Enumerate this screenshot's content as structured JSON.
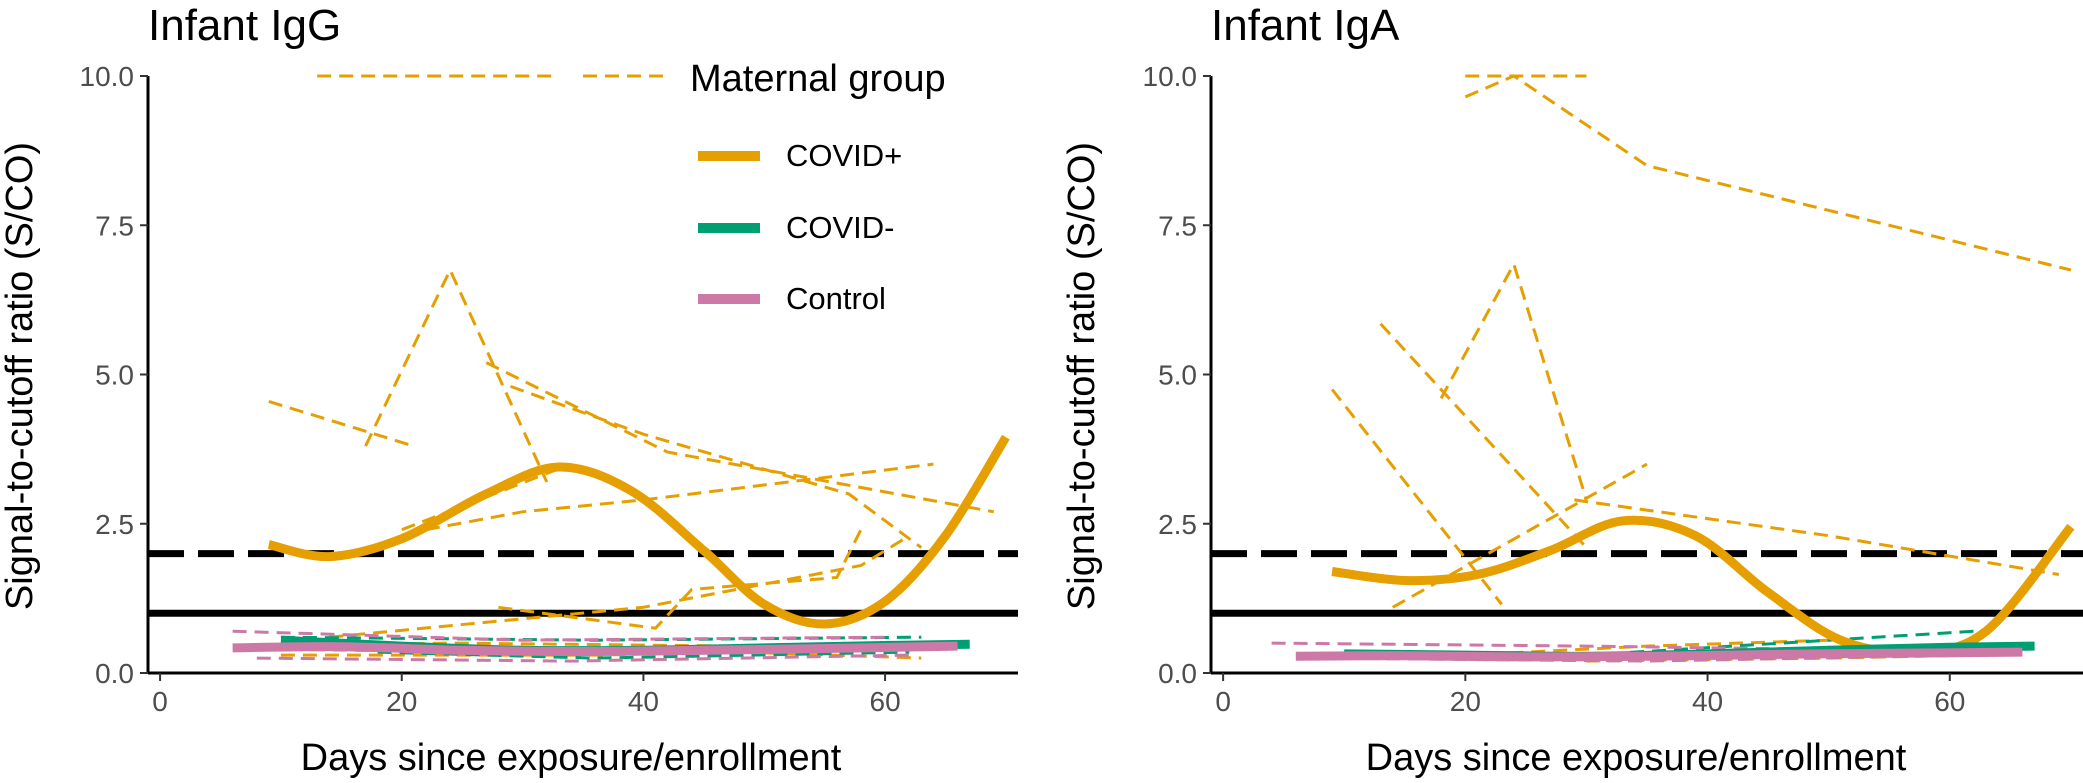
{
  "colors": {
    "covid_pos": "#E69F00",
    "covid_neg": "#009E73",
    "control": "#CC79A7",
    "axis": "#000000",
    "tick_text": "#4d4d4d"
  },
  "legend": {
    "title": "Maternal group",
    "items": [
      {
        "label": "COVID+",
        "color": "#E69F00"
      },
      {
        "label": "COVID-",
        "color": "#009E73"
      },
      {
        "label": "Control",
        "color": "#CC79A7"
      }
    ]
  },
  "chart_data": [
    {
      "type": "line",
      "title": "Infant IgG",
      "xlabel": "Days since exposure/enrollment",
      "ylabel": "Signal-to-cutoff ratio (S/CO)",
      "xlim": [
        -1,
        71
      ],
      "ylim": [
        0,
        10
      ],
      "xticks": [
        "0",
        "20",
        "40",
        "60"
      ],
      "yticks": [
        "0.0",
        "2.5",
        "5.0",
        "7.5",
        "10.0"
      ],
      "reference_lines": [
        {
          "y": 2,
          "style": "dashed"
        },
        {
          "y": 1,
          "style": "solid"
        }
      ],
      "individual_series": [
        {
          "group": "COVID+",
          "x": [
            9,
            21
          ],
          "y": [
            4.55,
            3.8
          ]
        },
        {
          "group": "COVID+",
          "x": [
            17,
            24,
            32
          ],
          "y": [
            3.8,
            6.75,
            3.2
          ]
        },
        {
          "group": "COVID+",
          "x": [
            27,
            42,
            69
          ],
          "y": [
            5.2,
            3.7,
            2.7
          ]
        },
        {
          "group": "COVID+",
          "x": [
            29,
            40,
            57,
            63
          ],
          "y": [
            4.8,
            4.0,
            3.0,
            2.1
          ]
        },
        {
          "group": "COVID+",
          "x": [
            20,
            34
          ],
          "y": [
            2.4,
            3.5
          ]
        },
        {
          "group": "COVID+",
          "x": [
            22,
            30,
            40,
            64
          ],
          "y": [
            2.4,
            2.7,
            2.9,
            3.5
          ]
        },
        {
          "group": "COVID+",
          "x": [
            14,
            40,
            58,
            62
          ],
          "y": [
            0.6,
            1.1,
            1.8,
            2.3
          ]
        },
        {
          "group": "COVID+",
          "x": [
            28,
            41,
            44,
            56,
            58
          ],
          "y": [
            1.1,
            0.75,
            1.4,
            1.6,
            2.4
          ]
        },
        {
          "group": "COVID+",
          "x": [
            8,
            24,
            48,
            62
          ],
          "y": [
            0.45,
            0.5,
            0.45,
            0.5
          ]
        },
        {
          "group": "COVID+",
          "x": [
            10,
            36,
            48,
            63
          ],
          "y": [
            0.3,
            0.3,
            0.35,
            0.25
          ]
        },
        {
          "group": "COVID+",
          "x": [
            13,
            33
          ],
          "y": [
            10.0,
            10.0
          ]
        },
        {
          "group": "COVID+",
          "x": [
            35,
            42
          ],
          "y": [
            10.0,
            10.0
          ]
        },
        {
          "group": "COVID-",
          "x": [
            10,
            36,
            63
          ],
          "y": [
            0.6,
            0.55,
            0.6
          ]
        },
        {
          "group": "COVID-",
          "x": [
            14,
            40,
            60
          ],
          "y": [
            0.45,
            0.35,
            0.5
          ]
        },
        {
          "group": "COVID-",
          "x": [
            18,
            36,
            62
          ],
          "y": [
            0.35,
            0.25,
            0.35
          ]
        },
        {
          "group": "Control",
          "x": [
            6,
            30,
            60
          ],
          "y": [
            0.7,
            0.55,
            0.6
          ]
        },
        {
          "group": "Control",
          "x": [
            7,
            31,
            66
          ],
          "y": [
            0.4,
            0.35,
            0.45
          ]
        },
        {
          "group": "Control",
          "x": [
            8,
            34,
            62
          ],
          "y": [
            0.25,
            0.2,
            0.3
          ]
        }
      ],
      "smooth_series": [
        {
          "group": "COVID+",
          "x": [
            9,
            14,
            20,
            27,
            33,
            39,
            45,
            50,
            55,
            60,
            65,
            70
          ],
          "y": [
            2.15,
            1.95,
            2.25,
            3.0,
            3.45,
            3.05,
            2.05,
            1.15,
            0.82,
            1.2,
            2.3,
            3.95
          ]
        },
        {
          "group": "COVID-",
          "x": [
            10,
            20,
            30,
            40,
            50,
            60,
            67
          ],
          "y": [
            0.55,
            0.45,
            0.38,
            0.38,
            0.42,
            0.46,
            0.48
          ]
        },
        {
          "group": "Control",
          "x": [
            6,
            15,
            25,
            35,
            45,
            55,
            66
          ],
          "y": [
            0.42,
            0.44,
            0.38,
            0.36,
            0.38,
            0.41,
            0.45
          ]
        }
      ]
    },
    {
      "type": "line",
      "title": "Infant IgA",
      "xlabel": "Days since exposure/enrollment",
      "ylabel": "Signal-to-cutoff ratio (S/CO)",
      "xlim": [
        -1,
        71
      ],
      "ylim": [
        0,
        10
      ],
      "xticks": [
        "0",
        "20",
        "40",
        "60"
      ],
      "yticks": [
        "0.0",
        "2.5",
        "5.0",
        "7.5",
        "10.0"
      ],
      "reference_lines": [
        {
          "y": 2,
          "style": "dashed"
        },
        {
          "y": 1,
          "style": "solid"
        }
      ],
      "individual_series": [
        {
          "group": "COVID+",
          "x": [
            20,
            24,
            35,
            70
          ],
          "y": [
            9.65,
            10.0,
            8.5,
            6.75
          ]
        },
        {
          "group": "COVID+",
          "x": [
            20,
            30
          ],
          "y": [
            10.0,
            10.0
          ]
        },
        {
          "group": "COVID+",
          "x": [
            9,
            23
          ],
          "y": [
            4.75,
            1.15
          ]
        },
        {
          "group": "COVID+",
          "x": [
            13,
            30
          ],
          "y": [
            5.85,
            2.1
          ]
        },
        {
          "group": "COVID+",
          "x": [
            18,
            24,
            30
          ],
          "y": [
            4.6,
            6.85,
            2.9
          ]
        },
        {
          "group": "COVID+",
          "x": [
            29,
            50,
            69
          ],
          "y": [
            2.9,
            2.3,
            1.65
          ]
        },
        {
          "group": "COVID+",
          "x": [
            14,
            35
          ],
          "y": [
            1.1,
            3.5
          ]
        },
        {
          "group": "COVID+",
          "x": [
            20,
            35,
            50
          ],
          "y": [
            0.3,
            0.45,
            0.55
          ]
        },
        {
          "group": "COVID+",
          "x": [
            30,
            50,
            62
          ],
          "y": [
            0.2,
            0.25,
            0.3
          ]
        },
        {
          "group": "COVID-",
          "x": [
            10,
            30,
            50,
            62
          ],
          "y": [
            0.35,
            0.3,
            0.55,
            0.7
          ]
        },
        {
          "group": "COVID-",
          "x": [
            15,
            35,
            60
          ],
          "y": [
            0.3,
            0.25,
            0.35
          ]
        },
        {
          "group": "Control",
          "x": [
            4,
            30,
            66
          ],
          "y": [
            0.5,
            0.45,
            0.35
          ]
        },
        {
          "group": "Control",
          "x": [
            8,
            35,
            62
          ],
          "y": [
            0.25,
            0.2,
            0.3
          ]
        }
      ],
      "smooth_series": [
        {
          "group": "COVID+",
          "x": [
            9,
            15,
            21,
            27,
            33,
            39,
            45,
            51,
            57,
            63,
            70
          ],
          "y": [
            1.7,
            1.55,
            1.65,
            2.05,
            2.55,
            2.3,
            1.35,
            0.55,
            0.35,
            0.7,
            2.45
          ]
        },
        {
          "group": "COVID-",
          "x": [
            10,
            20,
            30,
            40,
            50,
            60,
            67
          ],
          "y": [
            0.32,
            0.3,
            0.28,
            0.32,
            0.38,
            0.43,
            0.45
          ]
        },
        {
          "group": "Control",
          "x": [
            6,
            15,
            25,
            35,
            45,
            55,
            66
          ],
          "y": [
            0.28,
            0.29,
            0.27,
            0.28,
            0.31,
            0.33,
            0.35
          ]
        }
      ]
    }
  ]
}
